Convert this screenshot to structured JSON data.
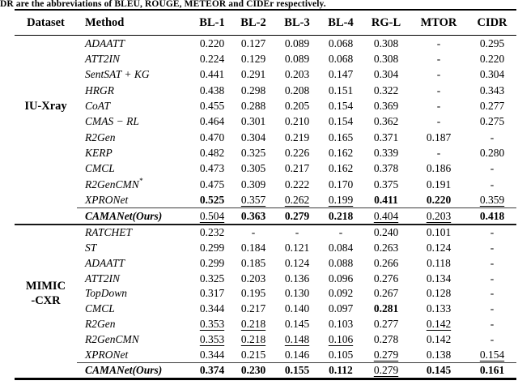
{
  "caption": "DR are the abbreviations of BLEU, ROUGE, METEOR and CIDEr respectively.",
  "colors": {
    "background": "#ffffff",
    "text": "#000000",
    "rule": "#000000"
  },
  "table": {
    "columns": [
      "Dataset",
      "Method",
      "BL-1",
      "BL-2",
      "BL-3",
      "BL-4",
      "RG-L",
      "MTOR",
      "CIDR"
    ],
    "sections": [
      {
        "dataset_lines": [
          "IU-Xray"
        ],
        "rows": [
          {
            "method": "ADAATT",
            "values": [
              {
                "v": "0.220"
              },
              {
                "v": "0.127"
              },
              {
                "v": "0.089"
              },
              {
                "v": "0.068"
              },
              {
                "v": "0.308"
              },
              {
                "v": "-"
              },
              {
                "v": "0.295"
              }
            ]
          },
          {
            "method": "ATT2IN",
            "values": [
              {
                "v": "0.224"
              },
              {
                "v": "0.129"
              },
              {
                "v": "0.089"
              },
              {
                "v": "0.068"
              },
              {
                "v": "0.308"
              },
              {
                "v": "-"
              },
              {
                "v": "0.220"
              }
            ]
          },
          {
            "method": "SentSAT + KG",
            "values": [
              {
                "v": "0.441"
              },
              {
                "v": "0.291"
              },
              {
                "v": "0.203"
              },
              {
                "v": "0.147"
              },
              {
                "v": "0.304"
              },
              {
                "v": "-"
              },
              {
                "v": "0.304"
              }
            ]
          },
          {
            "method": "HRGR",
            "values": [
              {
                "v": "0.438"
              },
              {
                "v": "0.298"
              },
              {
                "v": "0.208"
              },
              {
                "v": "0.151"
              },
              {
                "v": "0.322"
              },
              {
                "v": "-"
              },
              {
                "v": "0.343"
              }
            ]
          },
          {
            "method": "CoAT",
            "values": [
              {
                "v": "0.455"
              },
              {
                "v": "0.288"
              },
              {
                "v": "0.205"
              },
              {
                "v": "0.154"
              },
              {
                "v": "0.369"
              },
              {
                "v": "-"
              },
              {
                "v": "0.277"
              }
            ]
          },
          {
            "method": "CMAS − RL",
            "values": [
              {
                "v": "0.464"
              },
              {
                "v": "0.301"
              },
              {
                "v": "0.210"
              },
              {
                "v": "0.154"
              },
              {
                "v": "0.362"
              },
              {
                "v": "-"
              },
              {
                "v": "0.275"
              }
            ]
          },
          {
            "method": "R2Gen",
            "values": [
              {
                "v": "0.470"
              },
              {
                "v": "0.304"
              },
              {
                "v": "0.219"
              },
              {
                "v": "0.165"
              },
              {
                "v": "0.371"
              },
              {
                "v": "0.187"
              },
              {
                "v": "-"
              }
            ]
          },
          {
            "method": "KERP",
            "values": [
              {
                "v": "0.482"
              },
              {
                "v": "0.325"
              },
              {
                "v": "0.226"
              },
              {
                "v": "0.162"
              },
              {
                "v": "0.339"
              },
              {
                "v": "-"
              },
              {
                "v": "0.280"
              }
            ]
          },
          {
            "method": "CMCL",
            "values": [
              {
                "v": "0.473"
              },
              {
                "v": "0.305"
              },
              {
                "v": "0.217"
              },
              {
                "v": "0.162"
              },
              {
                "v": "0.378"
              },
              {
                "v": "0.186"
              },
              {
                "v": "-"
              }
            ]
          },
          {
            "method": "R2GenCMN",
            "sup": "*",
            "values": [
              {
                "v": "0.475"
              },
              {
                "v": "0.309"
              },
              {
                "v": "0.222"
              },
              {
                "v": "0.170"
              },
              {
                "v": "0.375"
              },
              {
                "v": "0.191"
              },
              {
                "v": "-"
              }
            ]
          },
          {
            "method": "XPRONet",
            "values": [
              {
                "v": "0.525",
                "s": "b"
              },
              {
                "v": "0.357",
                "s": "u"
              },
              {
                "v": "0.262",
                "s": "u"
              },
              {
                "v": "0.199",
                "s": "u"
              },
              {
                "v": "0.411",
                "s": "b"
              },
              {
                "v": "0.220",
                "s": "b"
              },
              {
                "v": "0.359",
                "s": "u"
              }
            ]
          },
          {
            "method": "CAMANet(Ours)",
            "bold": true,
            "topline": true,
            "values": [
              {
                "v": "0.504",
                "s": "u"
              },
              {
                "v": "0.363",
                "s": "b"
              },
              {
                "v": "0.279",
                "s": "b"
              },
              {
                "v": "0.218",
                "s": "b"
              },
              {
                "v": "0.404",
                "s": "u"
              },
              {
                "v": "0.203",
                "s": "u"
              },
              {
                "v": "0.418",
                "s": "b"
              }
            ]
          }
        ]
      },
      {
        "dataset_lines": [
          "MIMIC",
          "-CXR"
        ],
        "rows": [
          {
            "method": "RATCHET",
            "values": [
              {
                "v": "0.232"
              },
              {
                "v": "-"
              },
              {
                "v": "-"
              },
              {
                "v": "-"
              },
              {
                "v": "0.240"
              },
              {
                "v": "0.101"
              },
              {
                "v": "-"
              }
            ]
          },
          {
            "method": "ST",
            "values": [
              {
                "v": "0.299"
              },
              {
                "v": "0.184"
              },
              {
                "v": "0.121"
              },
              {
                "v": "0.084"
              },
              {
                "v": "0.263"
              },
              {
                "v": "0.124"
              },
              {
                "v": "-"
              }
            ]
          },
          {
            "method": "ADAATT",
            "values": [
              {
                "v": "0.299"
              },
              {
                "v": "0.185"
              },
              {
                "v": "0.124"
              },
              {
                "v": "0.088"
              },
              {
                "v": "0.266"
              },
              {
                "v": "0.118"
              },
              {
                "v": "-"
              }
            ]
          },
          {
            "method": "ATT2IN",
            "values": [
              {
                "v": "0.325"
              },
              {
                "v": "0.203"
              },
              {
                "v": "0.136"
              },
              {
                "v": "0.096"
              },
              {
                "v": "0.276"
              },
              {
                "v": "0.134"
              },
              {
                "v": "-"
              }
            ]
          },
          {
            "method": "TopDown",
            "values": [
              {
                "v": "0.317"
              },
              {
                "v": "0.195"
              },
              {
                "v": "0.130"
              },
              {
                "v": "0.092"
              },
              {
                "v": "0.267"
              },
              {
                "v": "0.128"
              },
              {
                "v": "-"
              }
            ]
          },
          {
            "method": "CMCL",
            "values": [
              {
                "v": "0.344"
              },
              {
                "v": "0.217"
              },
              {
                "v": "0.140"
              },
              {
                "v": "0.097"
              },
              {
                "v": "0.281",
                "s": "b"
              },
              {
                "v": "0.133"
              },
              {
                "v": "-"
              }
            ]
          },
          {
            "method": "R2Gen",
            "values": [
              {
                "v": "0.353",
                "s": "u"
              },
              {
                "v": "0.218",
                "s": "u"
              },
              {
                "v": "0.145"
              },
              {
                "v": "0.103"
              },
              {
                "v": "0.277"
              },
              {
                "v": "0.142",
                "s": "u"
              },
              {
                "v": "-"
              }
            ]
          },
          {
            "method": "R2GenCMN",
            "values": [
              {
                "v": "0.353",
                "s": "u"
              },
              {
                "v": "0.218",
                "s": "u"
              },
              {
                "v": "0.148",
                "s": "u"
              },
              {
                "v": "0.106",
                "s": "u"
              },
              {
                "v": "0.278"
              },
              {
                "v": "0.142"
              },
              {
                "v": "-"
              }
            ]
          },
          {
            "method": "XPRONet",
            "values": [
              {
                "v": "0.344"
              },
              {
                "v": "0.215"
              },
              {
                "v": "0.146"
              },
              {
                "v": "0.105"
              },
              {
                "v": "0.279",
                "s": "u"
              },
              {
                "v": "0.138"
              },
              {
                "v": "0.154",
                "s": "u"
              }
            ]
          },
          {
            "method": "CAMANet(Ours)",
            "bold": true,
            "topline": true,
            "values": [
              {
                "v": "0.374",
                "s": "b"
              },
              {
                "v": "0.230",
                "s": "b"
              },
              {
                "v": "0.155",
                "s": "b"
              },
              {
                "v": "0.112",
                "s": "b"
              },
              {
                "v": "0.279",
                "s": "u"
              },
              {
                "v": "0.145",
                "s": "b"
              },
              {
                "v": "0.161",
                "s": "b"
              }
            ]
          }
        ]
      }
    ]
  }
}
